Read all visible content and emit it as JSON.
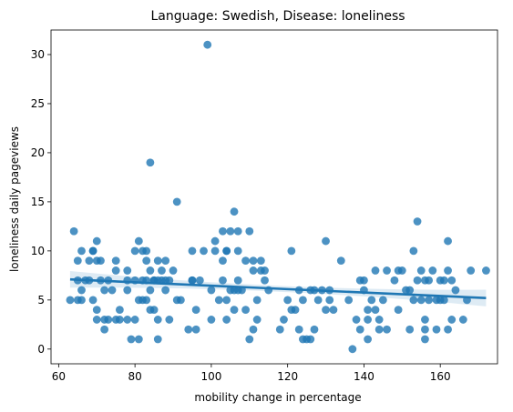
{
  "chart_data": {
    "type": "scatter",
    "title": "Language: Swedish, Disease: loneliness",
    "xlabel": "mobility change in percentage",
    "ylabel": "loneliness daily pageviews",
    "xlim": [
      58,
      175
    ],
    "ylim": [
      -1.5,
      32.5
    ],
    "xticks": [
      60,
      80,
      100,
      120,
      140,
      160
    ],
    "yticks": [
      0,
      5,
      10,
      15,
      20,
      25,
      30
    ],
    "grid": false,
    "point_color": "#1f77b4",
    "regression": {
      "x": [
        63,
        172
      ],
      "y": [
        7.1,
        5.2
      ],
      "color": "#1f77b4"
    },
    "points": [
      [
        63,
        5
      ],
      [
        64,
        12
      ],
      [
        65,
        7
      ],
      [
        65,
        5
      ],
      [
        65,
        9
      ],
      [
        66,
        10
      ],
      [
        66,
        6
      ],
      [
        66,
        5
      ],
      [
        67,
        7
      ],
      [
        68,
        7
      ],
      [
        68,
        9
      ],
      [
        69,
        5
      ],
      [
        69,
        10
      ],
      [
        69,
        10
      ],
      [
        70,
        11
      ],
      [
        70,
        9
      ],
      [
        70,
        4
      ],
      [
        70,
        3
      ],
      [
        71,
        9
      ],
      [
        71,
        7
      ],
      [
        72,
        6
      ],
      [
        72,
        2
      ],
      [
        72,
        3
      ],
      [
        73,
        3
      ],
      [
        73,
        7
      ],
      [
        74,
        6
      ],
      [
        75,
        9
      ],
      [
        75,
        8
      ],
      [
        75,
        3
      ],
      [
        76,
        4
      ],
      [
        76,
        3
      ],
      [
        78,
        6
      ],
      [
        78,
        3
      ],
      [
        78,
        7
      ],
      [
        78,
        8
      ],
      [
        79,
        1
      ],
      [
        80,
        10
      ],
      [
        80,
        3
      ],
      [
        80,
        7
      ],
      [
        81,
        11
      ],
      [
        81,
        5
      ],
      [
        81,
        1
      ],
      [
        82,
        5
      ],
      [
        82,
        7
      ],
      [
        82,
        10
      ],
      [
        83,
        9
      ],
      [
        83,
        5
      ],
      [
        83,
        7
      ],
      [
        83,
        10
      ],
      [
        84,
        4
      ],
      [
        84,
        6
      ],
      [
        84,
        8
      ],
      [
        84,
        19
      ],
      [
        85,
        4
      ],
      [
        85,
        7
      ],
      [
        85,
        7
      ],
      [
        86,
        3
      ],
      [
        86,
        1
      ],
      [
        86,
        9
      ],
      [
        86,
        7
      ],
      [
        87,
        7
      ],
      [
        87,
        8
      ],
      [
        88,
        9
      ],
      [
        88,
        7
      ],
      [
        88,
        6
      ],
      [
        89,
        7
      ],
      [
        89,
        3
      ],
      [
        90,
        8
      ],
      [
        91,
        15
      ],
      [
        91,
        5
      ],
      [
        92,
        5
      ],
      [
        94,
        2
      ],
      [
        95,
        7
      ],
      [
        95,
        7
      ],
      [
        95,
        10
      ],
      [
        96,
        2
      ],
      [
        96,
        4
      ],
      [
        97,
        7
      ],
      [
        98,
        10
      ],
      [
        99,
        31
      ],
      [
        100,
        6
      ],
      [
        100,
        3
      ],
      [
        101,
        11
      ],
      [
        101,
        10
      ],
      [
        102,
        5
      ],
      [
        103,
        12
      ],
      [
        103,
        9
      ],
      [
        103,
        7
      ],
      [
        104,
        10
      ],
      [
        104,
        5
      ],
      [
        104,
        3
      ],
      [
        104,
        10
      ],
      [
        105,
        12
      ],
      [
        105,
        6
      ],
      [
        106,
        14
      ],
      [
        106,
        6
      ],
      [
        106,
        4
      ],
      [
        107,
        12
      ],
      [
        107,
        7
      ],
      [
        107,
        6
      ],
      [
        107,
        10
      ],
      [
        108,
        6
      ],
      [
        109,
        9
      ],
      [
        109,
        4
      ],
      [
        110,
        12
      ],
      [
        110,
        1
      ],
      [
        111,
        9
      ],
      [
        111,
        8
      ],
      [
        111,
        2
      ],
      [
        112,
        5
      ],
      [
        112,
        3
      ],
      [
        113,
        8
      ],
      [
        113,
        9
      ],
      [
        114,
        8
      ],
      [
        114,
        7
      ],
      [
        115,
        6
      ],
      [
        118,
        2
      ],
      [
        119,
        3
      ],
      [
        120,
        5
      ],
      [
        121,
        10
      ],
      [
        121,
        4
      ],
      [
        122,
        4
      ],
      [
        123,
        6
      ],
      [
        123,
        2
      ],
      [
        124,
        5
      ],
      [
        124,
        1
      ],
      [
        125,
        1
      ],
      [
        126,
        6
      ],
      [
        126,
        1
      ],
      [
        127,
        6
      ],
      [
        127,
        2
      ],
      [
        128,
        5
      ],
      [
        129,
        6
      ],
      [
        130,
        11
      ],
      [
        130,
        4
      ],
      [
        131,
        5
      ],
      [
        131,
        6
      ],
      [
        132,
        4
      ],
      [
        134,
        9
      ],
      [
        136,
        5
      ],
      [
        137,
        0
      ],
      [
        138,
        3
      ],
      [
        139,
        7
      ],
      [
        139,
        2
      ],
      [
        140,
        7
      ],
      [
        140,
        6
      ],
      [
        141,
        4
      ],
      [
        141,
        1
      ],
      [
        141,
        3
      ],
      [
        142,
        5
      ],
      [
        143,
        4
      ],
      [
        143,
        8
      ],
      [
        144,
        3
      ],
      [
        144,
        2
      ],
      [
        145,
        5
      ],
      [
        146,
        8
      ],
      [
        146,
        2
      ],
      [
        148,
        7
      ],
      [
        149,
        4
      ],
      [
        149,
        8
      ],
      [
        150,
        8
      ],
      [
        151,
        6
      ],
      [
        152,
        2
      ],
      [
        152,
        6
      ],
      [
        153,
        5
      ],
      [
        153,
        10
      ],
      [
        154,
        13
      ],
      [
        154,
        7
      ],
      [
        155,
        5
      ],
      [
        155,
        8
      ],
      [
        156,
        3
      ],
      [
        156,
        2
      ],
      [
        156,
        1
      ],
      [
        156,
        7
      ],
      [
        157,
        7
      ],
      [
        157,
        5
      ],
      [
        158,
        8
      ],
      [
        159,
        5
      ],
      [
        159,
        2
      ],
      [
        160,
        7
      ],
      [
        160,
        5
      ],
      [
        161,
        5
      ],
      [
        161,
        7
      ],
      [
        162,
        2
      ],
      [
        162,
        11
      ],
      [
        162,
        8
      ],
      [
        163,
        3
      ],
      [
        163,
        7
      ],
      [
        164,
        6
      ],
      [
        166,
        3
      ],
      [
        167,
        5
      ],
      [
        168,
        8
      ],
      [
        172,
        8
      ]
    ]
  }
}
